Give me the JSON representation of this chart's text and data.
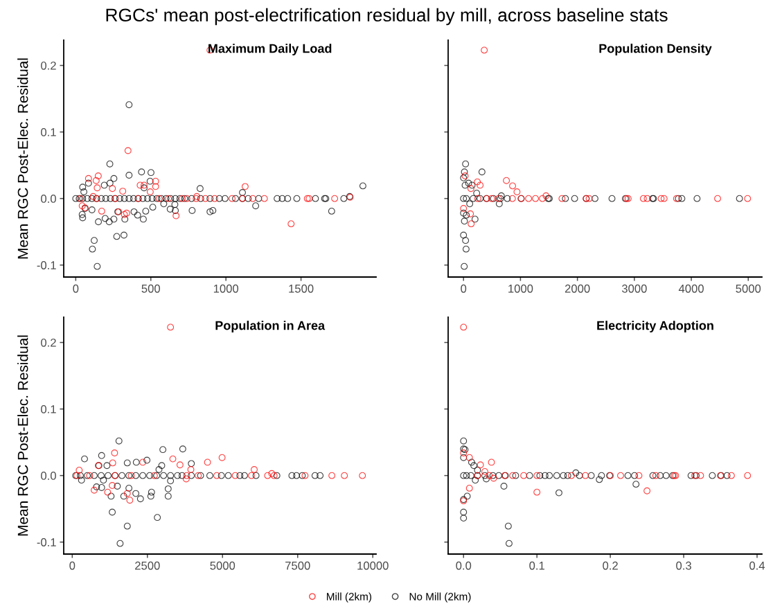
{
  "chart_data": [
    {
      "type": "scatter",
      "title": "Maximum Daily Load",
      "ylabel": "Mean RGC Post-Elec. Residual",
      "annotations": [
        "RGCs' mean post-electrification residual by mill, across baseline stats"
      ],
      "marker": "circle",
      "legend": "bottom",
      "grid": false,
      "xlim": [
        -80,
        2000
      ],
      "xticks": [
        0,
        500,
        1000,
        1500
      ],
      "ylim": [
        -0.118,
        0.238
      ],
      "yticks": [
        {
          "value": -0.1,
          "label": "-0.1"
        },
        {
          "value": 0,
          "label": "0.0"
        },
        {
          "value": 0.1,
          "label": "0.1"
        },
        {
          "value": 0.2,
          "label": "0.2"
        }
      ],
      "series": [
        {
          "name": "Mill (2km)",
          "color": "#ff0000",
          "x": [
            894,
            348,
            85,
            136,
            150,
            143,
            244,
            313,
            429,
            455,
            532,
            532,
            496,
            806,
            1128,
            1827,
            43,
            62,
            173,
            285,
            324,
            339,
            668,
            1434,
            116,
            31,
            139,
            262,
            416,
            555,
            617,
            709,
            740,
            802,
            863,
            925,
            1041,
            1110,
            1179,
            1256,
            1542,
            1554,
            1724
          ],
          "values": [
            0.223,
            0.072,
            0.03,
            0.027,
            0.034,
            0.016,
            0.015,
            0.011,
            0.02,
            0.02,
            0.026,
            0.018,
            0.01,
            0.003,
            0.018,
            0.002,
            -0.011,
            -0.014,
            -0.019,
            -0.02,
            -0.024,
            -0.022,
            -0.026,
            -0.038,
            0.003,
            0,
            0,
            0,
            0,
            0,
            0,
            0,
            0,
            0,
            0,
            0,
            0,
            0,
            0,
            0,
            0,
            0,
            0
          ]
        },
        {
          "name": "No Mill (2km)",
          "color": "#000000",
          "x": [
            355,
            227,
            254,
            438,
            501,
            355,
            190,
            228,
            46,
            85,
            54,
            495,
            455,
            828,
            1110,
            1912,
            1824,
            43,
            46,
            62,
            108,
            151,
            123,
            111,
            143,
            196,
            223,
            254,
            273,
            321,
            280,
            327,
            388,
            412,
            450,
            466,
            513,
            629,
            663,
            660,
            775,
            894,
            913,
            1198,
            1704,
            586,
            0,
            23,
            46,
            77,
            108,
            139,
            170,
            200,
            231,
            262,
            293,
            324,
            355,
            385,
            416,
            447,
            478,
            509,
            540,
            570,
            601,
            632,
            663,
            694,
            725,
            771,
            832,
            894,
            956,
            994,
            1064,
            1110,
            1148,
            1218,
            1341,
            1375,
            1411,
            1472,
            1596,
            1657,
            1665,
            1785
          ],
          "values": [
            0.141,
            0.052,
            0.03,
            0.04,
            0.039,
            0.035,
            0.02,
            0.023,
            0.017,
            0.023,
            0.01,
            0.026,
            0.016,
            0.015,
            0.009,
            0.019,
            0.003,
            -0.024,
            -0.029,
            -0.015,
            -0.017,
            -0.035,
            -0.063,
            -0.076,
            -0.102,
            -0.03,
            -0.035,
            -0.031,
            -0.057,
            -0.055,
            -0.02,
            -0.031,
            -0.02,
            -0.025,
            -0.031,
            -0.019,
            -0.013,
            -0.016,
            -0.018,
            -0.009,
            -0.018,
            -0.02,
            -0.018,
            -0.011,
            -0.019,
            -0.008,
            0,
            0,
            0,
            0,
            0,
            0,
            0,
            0,
            0,
            0,
            0,
            0,
            0,
            0,
            0,
            0,
            0,
            0,
            0,
            0,
            0,
            0,
            0,
            0,
            0,
            0,
            0,
            0,
            0,
            0,
            0,
            0,
            0,
            0,
            0,
            0,
            0,
            0,
            0,
            0,
            0,
            0
          ]
        }
      ]
    },
    {
      "type": "scatter",
      "title": "Population Density",
      "marker": "circle",
      "legend": "bottom",
      "grid": false,
      "tick_labels": "x",
      "xlim": [
        -270,
        5240
      ],
      "xticks": [
        0,
        1000,
        2000,
        3000,
        4000,
        5000
      ],
      "ylim": [
        -0.118,
        0.238
      ],
      "yticks": [
        {
          "value": -0.1,
          "label": null
        },
        {
          "value": 0,
          "label": null
        },
        {
          "value": 0.1,
          "label": null
        },
        {
          "value": 0.2,
          "label": null
        }
      ],
      "series": [
        {
          "name": "Mill (2km)",
          "color": "#ff0000",
          "x": [
            364,
            28,
            243,
            291,
            753,
            862,
            939,
            1449,
            130,
            134,
            121,
            0,
            251,
            405,
            494,
            615,
            858,
            1012,
            1142,
            1263,
            1385,
            1729,
            2154,
            2206,
            2862,
            2891,
            3158,
            3226,
            3470,
            3522,
            3741,
            4462,
            4988
          ],
          "values": [
            0.223,
            0.034,
            0.025,
            0.02,
            0.027,
            0.019,
            0.01,
            0.004,
            0.015,
            -0.038,
            -0.023,
            -0.015,
            0,
            0,
            0,
            0,
            0,
            0,
            0,
            0,
            0,
            0,
            0,
            0,
            0,
            0,
            0,
            0,
            0,
            0,
            0,
            0,
            0
          ]
        },
        {
          "name": "No Mill (2km)",
          "color": "#000000",
          "x": [
            36,
            324,
            16,
            0,
            28,
            89,
            150,
            231,
            664,
            628,
            202,
            16,
            49,
            0,
            36,
            45,
            12,
            0,
            109,
            0,
            49,
            170,
            291,
            405,
            526,
            648,
            769,
            1012,
            1486,
            1506,
            1789,
            1951,
            2154,
            2308,
            2607,
            2842,
            3320,
            3336,
            3773,
            3834,
            4101,
            4846
          ],
          "values": [
            0.052,
            0.04,
            0.04,
            0.031,
            0.02,
            0.023,
            0.02,
            0.008,
            0.004,
            -0.008,
            -0.031,
            -0.034,
            -0.025,
            -0.055,
            -0.063,
            -0.076,
            -0.102,
            -0.022,
            -0.008,
            0,
            0,
            0,
            0,
            0,
            0,
            0,
            0,
            0,
            0,
            0,
            0,
            0,
            0,
            0,
            0,
            0,
            0,
            0,
            0,
            0,
            0,
            0
          ]
        }
      ]
    },
    {
      "type": "scatter",
      "title": "Population in Area",
      "ylabel": "Mean RGC Post-Elec. Residual",
      "marker": "circle",
      "legend": "bottom",
      "grid": false,
      "xlim": [
        -284,
        10110
      ],
      "xticks": [
        0,
        2500,
        5000,
        7500,
        10000
      ],
      "ylim": [
        -0.118,
        0.238
      ],
      "yticks": [
        {
          "value": -0.1,
          "label": "-0.1"
        },
        {
          "value": 0,
          "label": "0.0"
        },
        {
          "value": 0.1,
          "label": "0.1"
        },
        {
          "value": 0.2,
          "label": "0.2"
        }
      ],
      "series": [
        {
          "name": "Mill (2km)",
          "color": "#ff0000",
          "x": [
            3269,
            1408,
            231,
            869,
            1346,
            2346,
            3346,
            3585,
            3946,
            4500,
            4985,
            6054,
            6638,
            731,
            1177,
            1331,
            1831,
            1915,
            3792,
            154,
            577,
            1423,
            1962,
            2731,
            3808,
            4192,
            4808,
            5423,
            5962,
            6500,
            6715,
            7746,
            8638,
            9054,
            9654
          ],
          "values": [
            0.223,
            0.034,
            0.008,
            0.015,
            0.019,
            0.02,
            0.025,
            0.016,
            0.009,
            0.02,
            0.027,
            0.009,
            0.003,
            -0.022,
            -0.025,
            -0.015,
            -0.027,
            -0.037,
            -0.005,
            0,
            0,
            0,
            0,
            0,
            0,
            0,
            0,
            0,
            0,
            0,
            0,
            0,
            0,
            0,
            0
          ]
        },
        {
          "name": "No Mill (2km)",
          "color": "#000000",
          "x": [
            1554,
            3015,
            3677,
            408,
            977,
            885,
            1154,
            1831,
            2131,
            2485,
            2977,
            3962,
            2885,
            308,
            808,
            977,
            1292,
            1500,
            1715,
            1885,
            2115,
            2269,
            2638,
            2615,
            3192,
            3192,
            3269,
            1331,
            2831,
            1831,
            1592,
            1038,
            115,
            269,
            500,
            731,
            962,
            1192,
            1423,
            1654,
            1885,
            2115,
            2346,
            2577,
            2808,
            3038,
            3269,
            3500,
            3654,
            3962,
            4269,
            4577,
            4962,
            5192,
            5577,
            5731,
            6115,
            6808,
            7308,
            7462,
            7654,
            8077,
            8246
          ],
          "values": [
            0.052,
            0.039,
            0.04,
            0.025,
            0.03,
            0.015,
            0.015,
            0.019,
            0.02,
            0.023,
            0.015,
            0.018,
            0.009,
            -0.007,
            -0.017,
            -0.018,
            -0.031,
            -0.016,
            -0.031,
            -0.019,
            -0.027,
            -0.035,
            -0.025,
            -0.031,
            -0.02,
            -0.031,
            -0.008,
            -0.055,
            -0.063,
            -0.076,
            -0.102,
            -0.007,
            0,
            0,
            0,
            0,
            0,
            0,
            0,
            0,
            0,
            0,
            0,
            0,
            0,
            0,
            0,
            0,
            0,
            0,
            0,
            0,
            0,
            0,
            0,
            0,
            0,
            0,
            0,
            0,
            0,
            0,
            0
          ]
        }
      ]
    },
    {
      "type": "scatter",
      "title": "Electricity Adoption",
      "marker": "circle",
      "legend": "bottom",
      "grid": false,
      "tick_labels": "x",
      "xlim": [
        -0.021,
        0.4066
      ],
      "xticks": [
        {
          "value": 0,
          "label": "0.0"
        },
        0.1,
        0.2,
        0.3,
        0.4
      ],
      "ylim": [
        -0.118,
        0.238
      ],
      "yticks": [
        {
          "value": -0.1,
          "label": null
        },
        {
          "value": 0,
          "label": null
        },
        {
          "value": 0.1,
          "label": null
        },
        {
          "value": 0.2,
          "label": null
        }
      ],
      "series": [
        {
          "name": "Mill (2km)",
          "color": "#ff0000",
          "x": [
            0,
            0.008,
            0.038,
            0.023,
            0.029,
            0.1,
            0.25,
            0,
            0.008,
            0,
            0.041,
            0.019,
            0.035,
            0.056,
            0.067,
            0.082,
            0.1,
            0.147,
            0.166,
            0.2,
            0.214,
            0.239,
            0.262,
            0.287,
            0.289,
            0.315,
            0.323,
            0.35,
            0.365,
            0.387
          ],
          "values": [
            0.223,
            0.027,
            0.02,
            0.016,
            0.006,
            -0.025,
            -0.023,
            -0.038,
            -0.019,
            0.034,
            -0.004,
            0,
            0,
            0,
            0,
            0,
            0,
            0,
            0,
            0,
            0,
            0,
            0,
            0,
            0,
            0,
            0,
            0,
            0,
            0
          ]
        },
        {
          "name": "No Mill (2km)",
          "color": "#000000",
          "x": [
            0,
            0,
            0.002,
            0.011,
            0.014,
            0.019,
            0.153,
            0.055,
            0.13,
            0.185,
            0.235,
            0,
            0,
            0.061,
            0.062,
            0.005,
            0,
            0.016,
            0.031,
            0,
            0,
            0.004,
            0.01,
            0.019,
            0.029,
            0.04,
            0.048,
            0.057,
            0.071,
            0.09,
            0.104,
            0.111,
            0.117,
            0.127,
            0.136,
            0.142,
            0.158,
            0.174,
            0.188,
            0.199,
            0.224,
            0.233,
            0.258,
            0.268,
            0.276,
            0.285,
            0.31,
            0.317,
            0.339,
            0.351,
            0.359
          ],
          "values": [
            0.052,
            0.04,
            0.039,
            0.02,
            0.015,
            0.008,
            0.004,
            -0.016,
            -0.026,
            -0.006,
            -0.013,
            -0.055,
            -0.064,
            -0.076,
            -0.102,
            -0.031,
            -0.036,
            -0.007,
            -0.005,
            0.027,
            0,
            0,
            0,
            0,
            0,
            0,
            0,
            0,
            0,
            0,
            0,
            0,
            0,
            0,
            0,
            0,
            0,
            0,
            0,
            0,
            0,
            0,
            0,
            0,
            0,
            0,
            0,
            0,
            0,
            0,
            0
          ]
        }
      ]
    }
  ]
}
